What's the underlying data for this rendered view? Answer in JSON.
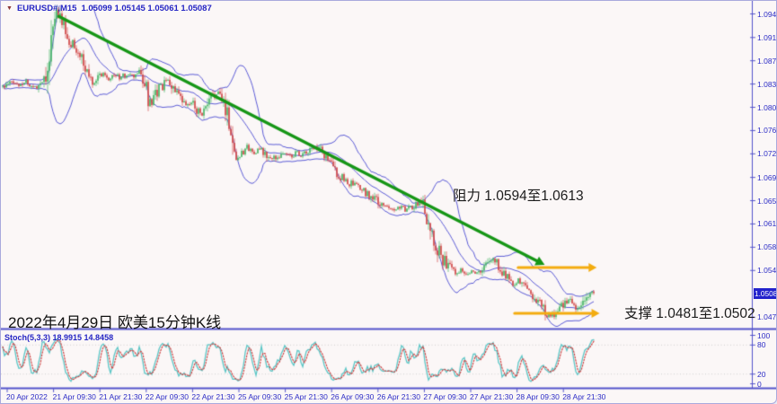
{
  "header": {
    "symbol_period": "EURUSD#,M15",
    "ohlc": "1.05099 1.05145 1.05061 1.05087"
  },
  "stoch": {
    "label_full": "Stoch(5,3,3) 18.9915 14.8458"
  },
  "colors": {
    "background": "#fbf7f7",
    "axis_text": "#2d2dc6",
    "separator": "#5353cb",
    "grid_dotted": "#cfcfcf",
    "candle_up": "#4db86a",
    "candle_down": "#d14b4b",
    "bollinger": "#5c5cd6",
    "trendline": "#169616",
    "arrow": "#f3ac0f",
    "stoch_k": "#5cc6c6",
    "stoch_d": "#cf4545",
    "badge_bg": "#2222cc",
    "badge_text": "#ffffff",
    "annotation_text": "#1c1c1c"
  },
  "chart_data": {
    "type": "candlestick",
    "symbol": "EURUSD#",
    "timeframe": "M15",
    "ohlc_current": {
      "open": "1.05099",
      "high": "1.05145",
      "low": "1.05061",
      "close": "1.05087"
    },
    "last_price": "1.05087",
    "price_axis_ticks": [
      "1.09475",
      "1.09105",
      "1.08740",
      "1.08375",
      "1.08010",
      "1.07645",
      "1.07280",
      "1.06910",
      "1.06545",
      "1.06180",
      "1.05815",
      "1.05450",
      "1.04715"
    ],
    "time_axis_labels": [
      "20 Apr 2022",
      "21 Apr 09:30",
      "21 Apr 21:30",
      "22 Apr 09:30",
      "22 Apr 21:30",
      "25 Apr 09:30",
      "25 Apr 21:30",
      "26 Apr 09:30",
      "26 Apr 21:30",
      "27 Apr 09:30",
      "27 Apr 21:30",
      "28 Apr 09:30",
      "28 Apr 21:30"
    ],
    "ylim": [
      1.0455,
      1.096
    ],
    "grid": "dotted lines at stochastic 80/20 only",
    "legend_position": "top-left overlay",
    "price_path": [
      [
        0.005,
        1.0833
      ],
      [
        0.015,
        1.084
      ],
      [
        0.027,
        1.0835
      ],
      [
        0.039,
        1.0842
      ],
      [
        0.05,
        1.0831
      ],
      [
        0.06,
        1.0836
      ],
      [
        0.069,
        1.0846
      ],
      [
        0.077,
        1.0869
      ],
      [
        0.085,
        1.0919
      ],
      [
        0.091,
        1.095
      ],
      [
        0.095,
        1.0936
      ],
      [
        0.1,
        1.0945
      ],
      [
        0.106,
        1.0914
      ],
      [
        0.112,
        1.0894
      ],
      [
        0.119,
        1.0902
      ],
      [
        0.127,
        1.089
      ],
      [
        0.136,
        1.0866
      ],
      [
        0.145,
        1.0852
      ],
      [
        0.153,
        1.0839
      ],
      [
        0.162,
        1.0849
      ],
      [
        0.171,
        1.0855
      ],
      [
        0.18,
        1.0846
      ],
      [
        0.189,
        1.0852
      ],
      [
        0.199,
        1.0846
      ],
      [
        0.21,
        1.0852
      ],
      [
        0.221,
        1.0848
      ],
      [
        0.23,
        1.0856
      ],
      [
        0.239,
        1.0843
      ],
      [
        0.246,
        1.0812
      ],
      [
        0.252,
        1.0802
      ],
      [
        0.26,
        1.0824
      ],
      [
        0.269,
        1.0832
      ],
      [
        0.278,
        1.0842
      ],
      [
        0.286,
        1.0836
      ],
      [
        0.293,
        1.0821
      ],
      [
        0.302,
        1.081
      ],
      [
        0.311,
        1.0802
      ],
      [
        0.32,
        1.0808
      ],
      [
        0.329,
        1.0797
      ],
      [
        0.338,
        1.079
      ],
      [
        0.347,
        1.0802
      ],
      [
        0.355,
        1.0819
      ],
      [
        0.363,
        1.0822
      ],
      [
        0.372,
        1.0811
      ],
      [
        0.379,
        1.0797
      ],
      [
        0.385,
        1.077
      ],
      [
        0.391,
        1.0735
      ],
      [
        0.397,
        1.0719
      ],
      [
        0.405,
        1.0732
      ],
      [
        0.414,
        1.0738
      ],
      [
        0.423,
        1.0729
      ],
      [
        0.434,
        1.0734
      ],
      [
        0.444,
        1.0725
      ],
      [
        0.455,
        1.0718
      ],
      [
        0.465,
        1.0724
      ],
      [
        0.476,
        1.0728
      ],
      [
        0.486,
        1.0724
      ],
      [
        0.497,
        1.0729
      ],
      [
        0.508,
        1.0725
      ],
      [
        0.518,
        1.0732
      ],
      [
        0.529,
        1.0736
      ],
      [
        0.539,
        1.0731
      ],
      [
        0.55,
        1.0719
      ],
      [
        0.56,
        1.0703
      ],
      [
        0.571,
        1.0691
      ],
      [
        0.582,
        1.0683
      ],
      [
        0.592,
        1.0679
      ],
      [
        0.603,
        1.0673
      ],
      [
        0.613,
        1.0667
      ],
      [
        0.624,
        1.066
      ],
      [
        0.634,
        1.0652
      ],
      [
        0.645,
        1.0643
      ],
      [
        0.654,
        1.0646
      ],
      [
        0.663,
        1.064
      ],
      [
        0.672,
        1.0645
      ],
      [
        0.681,
        1.0639
      ],
      [
        0.69,
        1.0643
      ],
      [
        0.699,
        1.0647
      ],
      [
        0.708,
        1.0656
      ],
      [
        0.714,
        1.064
      ],
      [
        0.722,
        1.0618
      ],
      [
        0.73,
        1.0597
      ],
      [
        0.737,
        1.0577
      ],
      [
        0.745,
        1.0562
      ],
      [
        0.752,
        1.0553
      ],
      [
        0.76,
        1.0548
      ],
      [
        0.767,
        1.0542
      ],
      [
        0.777,
        1.0546
      ],
      [
        0.785,
        1.054
      ],
      [
        0.795,
        1.0545
      ],
      [
        0.804,
        1.0539
      ],
      [
        0.813,
        1.0547
      ],
      [
        0.822,
        1.0557
      ],
      [
        0.829,
        1.0563
      ],
      [
        0.837,
        1.0554
      ],
      [
        0.846,
        1.0543
      ],
      [
        0.855,
        1.0532
      ],
      [
        0.864,
        1.0524
      ],
      [
        0.873,
        1.0529
      ],
      [
        0.882,
        1.0521
      ],
      [
        0.891,
        1.0512
      ],
      [
        0.9,
        1.0502
      ],
      [
        0.909,
        1.0491
      ],
      [
        0.918,
        1.048
      ],
      [
        0.926,
        1.0471
      ],
      [
        0.934,
        1.0477
      ],
      [
        0.941,
        1.0485
      ],
      [
        0.949,
        1.0492
      ],
      [
        0.956,
        1.0498
      ],
      [
        0.964,
        1.0494
      ],
      [
        0.971,
        1.0487
      ],
      [
        0.979,
        1.0482
      ],
      [
        0.985,
        1.0497
      ],
      [
        0.99,
        1.0508
      ],
      [
        0.994,
        1.0512
      ],
      [
        1.0,
        1.05087
      ]
    ],
    "indicators": {
      "bollinger_bands": {
        "style": "blue upper/middle/lower lines",
        "period": 20,
        "deviation": 2
      },
      "stochastic": {
        "label": "Stoch(5,3,3)",
        "k_value": "18.9915",
        "d_value": "14.8458",
        "axis": [
          "100",
          "80",
          "20",
          "0"
        ],
        "grid_levels": [
          80,
          20
        ]
      }
    },
    "annotations": {
      "trendline": {
        "from": [
          0.095,
          1.0943
        ],
        "to": [
          0.917,
          1.0553
        ]
      },
      "resistance_arrow": {
        "price": 1.0549,
        "from_f": 0.872,
        "to_f": 1.005
      },
      "support_arrow": {
        "price": 1.0477,
        "from_f": 0.866,
        "to_f": 1.01
      },
      "resistance_label": "阻力 1.0594至1.0613",
      "support_label": "支撑 1.0481至1.0502",
      "date_label": "2022年4月29日 欧美15分钟K线"
    }
  }
}
